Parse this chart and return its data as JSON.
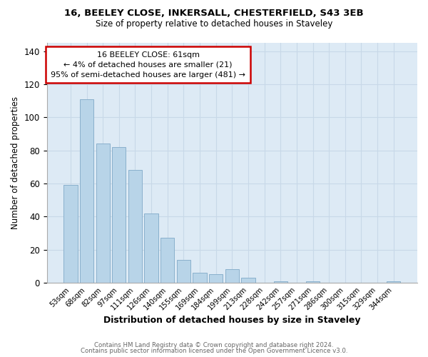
{
  "title1": "16, BEELEY CLOSE, INKERSALL, CHESTERFIELD, S43 3EB",
  "title2": "Size of property relative to detached houses in Staveley",
  "xlabel": "Distribution of detached houses by size in Staveley",
  "ylabel": "Number of detached properties",
  "bar_labels": [
    "53sqm",
    "68sqm",
    "82sqm",
    "97sqm",
    "111sqm",
    "126sqm",
    "140sqm",
    "155sqm",
    "169sqm",
    "184sqm",
    "199sqm",
    "213sqm",
    "228sqm",
    "242sqm",
    "257sqm",
    "271sqm",
    "286sqm",
    "300sqm",
    "315sqm",
    "329sqm",
    "344sqm"
  ],
  "bar_values": [
    59,
    111,
    84,
    82,
    68,
    42,
    27,
    14,
    6,
    5,
    8,
    3,
    0,
    1,
    0,
    1,
    0,
    0,
    0,
    0,
    1
  ],
  "bar_color": "#b8d4e8",
  "bar_edge_color": "#8ab0cc",
  "annotation_box_text": "16 BEELEY CLOSE: 61sqm\n← 4% of detached houses are smaller (21)\n95% of semi-detached houses are larger (481) →",
  "annotation_box_color": "#ffffff",
  "annotation_box_edge_color": "#cc0000",
  "ylim": [
    0,
    145
  ],
  "yticks": [
    0,
    20,
    40,
    60,
    80,
    100,
    120,
    140
  ],
  "grid_color": "#c8d8e8",
  "footer_line1": "Contains HM Land Registry data © Crown copyright and database right 2024.",
  "footer_line2": "Contains public sector information licensed under the Open Government Licence v3.0.",
  "bg_color": "#ffffff",
  "plot_bg_color": "#ddeaf5"
}
